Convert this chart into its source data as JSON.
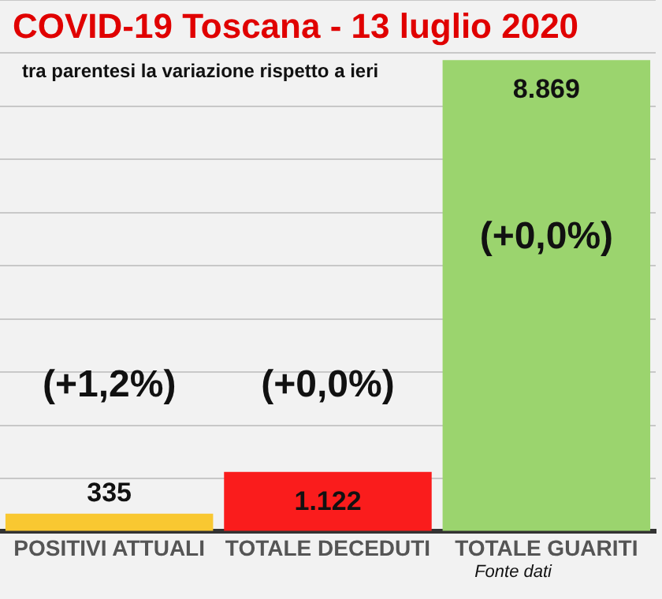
{
  "chart_data": {
    "type": "bar",
    "title": "COVID-19  Toscana - 13 luglio 2020",
    "subtitle": "tra parentesi la variazione rispetto a ieri",
    "categories": [
      "POSITIVI ATTUALI",
      "TOTALE DECEDUTI",
      "TOTALE GUARITI"
    ],
    "values": [
      335,
      1122,
      8869
    ],
    "colors": [
      "#f9c831",
      "#fa1c1c",
      "#9bd46e"
    ],
    "value_labels": [
      "335",
      "1.122",
      "8.869"
    ],
    "ylim": [
      0,
      10000
    ],
    "yticks": [
      {
        "value": 0,
        "label": null
      },
      {
        "value": 1000,
        "label": null
      },
      {
        "value": 2000,
        "label": null
      },
      {
        "value": 3000,
        "label": null
      },
      {
        "value": 4000,
        "label": null
      },
      {
        "value": 5000,
        "label": null
      },
      {
        "value": 6000,
        "label": null
      },
      {
        "value": 7000,
        "label": null
      },
      {
        "value": 8000,
        "label": null
      },
      {
        "value": 9000,
        "label": null
      },
      {
        "value": 10000,
        "label": null
      }
    ],
    "grid": "y",
    "tick_labels": "x",
    "annotations": [
      "(+1,2%)",
      "(+0,0%)",
      "(+0,0%)",
      "Fonte dati"
    ]
  }
}
